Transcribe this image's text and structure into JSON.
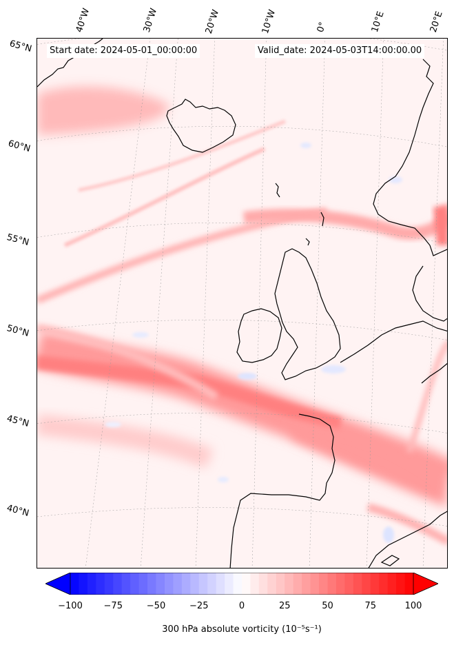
{
  "header": {
    "start_date": "Start date: 2024-05-01_00:00:00",
    "valid_date": "Valid_date: 2024-05-03T14:00:00.00"
  },
  "map": {
    "type": "filled contour map",
    "field": "300 hPa absolute vorticity",
    "region": "North Atlantic / Western Europe",
    "projection": "conic",
    "gridlines": true,
    "coastlines": true,
    "longitude_labels": [
      "40°W",
      "30°W",
      "20°W",
      "10°W",
      "0°",
      "10°E",
      "20°E"
    ],
    "latitude_labels": [
      "65°N",
      "60°N",
      "55°N",
      "50°N",
      "45°N",
      "40°N"
    ],
    "features": [
      {
        "name": "Iceland",
        "kind": "land"
      },
      {
        "name": "Scandinavia",
        "kind": "land"
      },
      {
        "name": "British Isles",
        "kind": "land"
      },
      {
        "name": "France",
        "kind": "land"
      },
      {
        "name": "Iberian Peninsula",
        "kind": "land"
      },
      {
        "name": "North Africa",
        "kind": "land"
      },
      {
        "name": "Greenland",
        "kind": "land"
      }
    ],
    "colors": {
      "negative": "#0000ff",
      "zero": "#ffffff",
      "positive": "#ff0000"
    }
  },
  "colorbar": {
    "min": -100,
    "max": 100,
    "ticks": [
      "−100",
      "−75",
      "−50",
      "−25",
      "0",
      "25",
      "50",
      "75",
      "100"
    ],
    "label": "300 hPa absolute vorticity (10⁻⁵s⁻¹)",
    "extend": "both",
    "cmap": "bwr"
  }
}
